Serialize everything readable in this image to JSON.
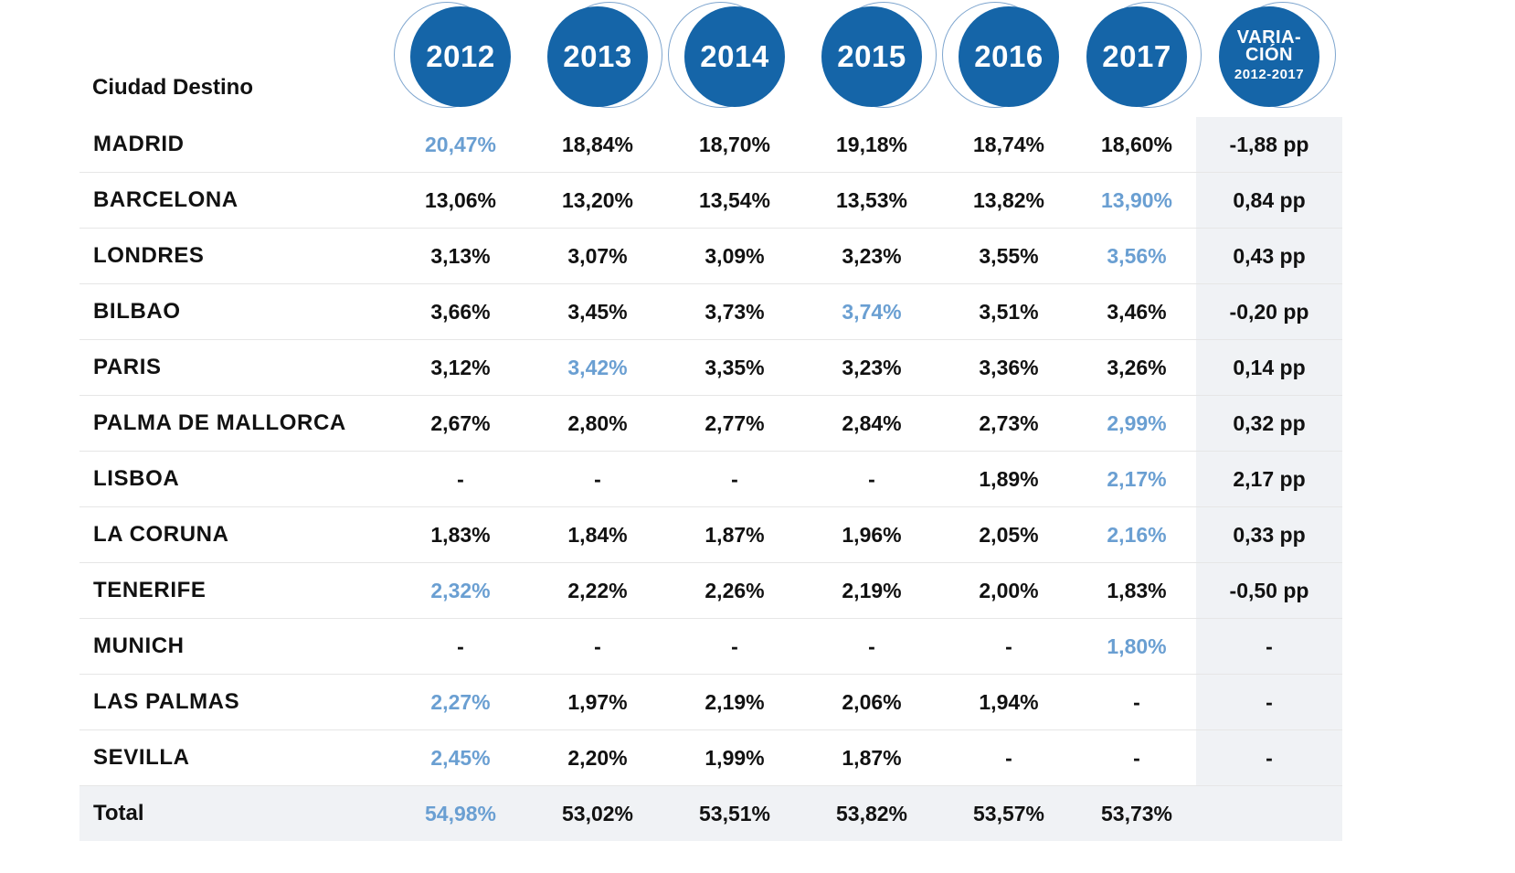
{
  "chart_data": {
    "type": "table",
    "row_header": "Ciudad Destino",
    "columns": [
      "2012",
      "2013",
      "2014",
      "2015",
      "2016",
      "2017"
    ],
    "variation_header": {
      "line1": "VARIA-",
      "line2": "CIÓN",
      "line3": "2012-2017"
    },
    "rows": [
      {
        "city": "MADRID",
        "values": [
          "20,47%",
          "18,84%",
          "18,70%",
          "19,18%",
          "18,74%",
          "18,60%"
        ],
        "highlight": 0,
        "variation": "-1,88 pp"
      },
      {
        "city": "BARCELONA",
        "values": [
          "13,06%",
          "13,20%",
          "13,54%",
          "13,53%",
          "13,82%",
          "13,90%"
        ],
        "highlight": 5,
        "variation": "0,84 pp"
      },
      {
        "city": "LONDRES",
        "values": [
          "3,13%",
          "3,07%",
          "3,09%",
          "3,23%",
          "3,55%",
          "3,56%"
        ],
        "highlight": 5,
        "variation": "0,43 pp"
      },
      {
        "city": "BILBAO",
        "values": [
          "3,66%",
          "3,45%",
          "3,73%",
          "3,74%",
          "3,51%",
          "3,46%"
        ],
        "highlight": 3,
        "variation": "-0,20 pp"
      },
      {
        "city": "PARIS",
        "values": [
          "3,12%",
          "3,42%",
          "3,35%",
          "3,23%",
          "3,36%",
          "3,26%"
        ],
        "highlight": 1,
        "variation": "0,14 pp"
      },
      {
        "city": "PALMA DE MALLORCA",
        "values": [
          "2,67%",
          "2,80%",
          "2,77%",
          "2,84%",
          "2,73%",
          "2,99%"
        ],
        "highlight": 5,
        "variation": "0,32 pp"
      },
      {
        "city": "LISBOA",
        "values": [
          "-",
          "-",
          "-",
          "-",
          "1,89%",
          "2,17%"
        ],
        "highlight": 5,
        "variation": "2,17 pp"
      },
      {
        "city": "LA CORUNA",
        "values": [
          "1,83%",
          "1,84%",
          "1,87%",
          "1,96%",
          "2,05%",
          "2,16%"
        ],
        "highlight": 5,
        "variation": "0,33 pp"
      },
      {
        "city": "TENERIFE",
        "values": [
          "2,32%",
          "2,22%",
          "2,26%",
          "2,19%",
          "2,00%",
          "1,83%"
        ],
        "highlight": 0,
        "variation": "-0,50 pp"
      },
      {
        "city": "MUNICH",
        "values": [
          "-",
          "-",
          "-",
          "-",
          "-",
          "1,80%"
        ],
        "highlight": 5,
        "variation": "-"
      },
      {
        "city": "LAS PALMAS",
        "values": [
          "2,27%",
          "1,97%",
          "2,19%",
          "2,06%",
          "1,94%",
          "-"
        ],
        "highlight": 0,
        "variation": "-"
      },
      {
        "city": "SEVILLA",
        "values": [
          "2,45%",
          "2,20%",
          "1,99%",
          "1,87%",
          "-",
          "-"
        ],
        "highlight": 0,
        "variation": "-"
      }
    ],
    "total": {
      "label": "Total",
      "values": [
        "54,98%",
        "53,02%",
        "53,51%",
        "53,82%",
        "53,57%",
        "53,73%"
      ],
      "highlight": 0,
      "variation": ""
    },
    "colors": {
      "circle": "#1565a8",
      "highlight": "#6a9fd2",
      "variation_bg": "#f0f2f5"
    }
  }
}
